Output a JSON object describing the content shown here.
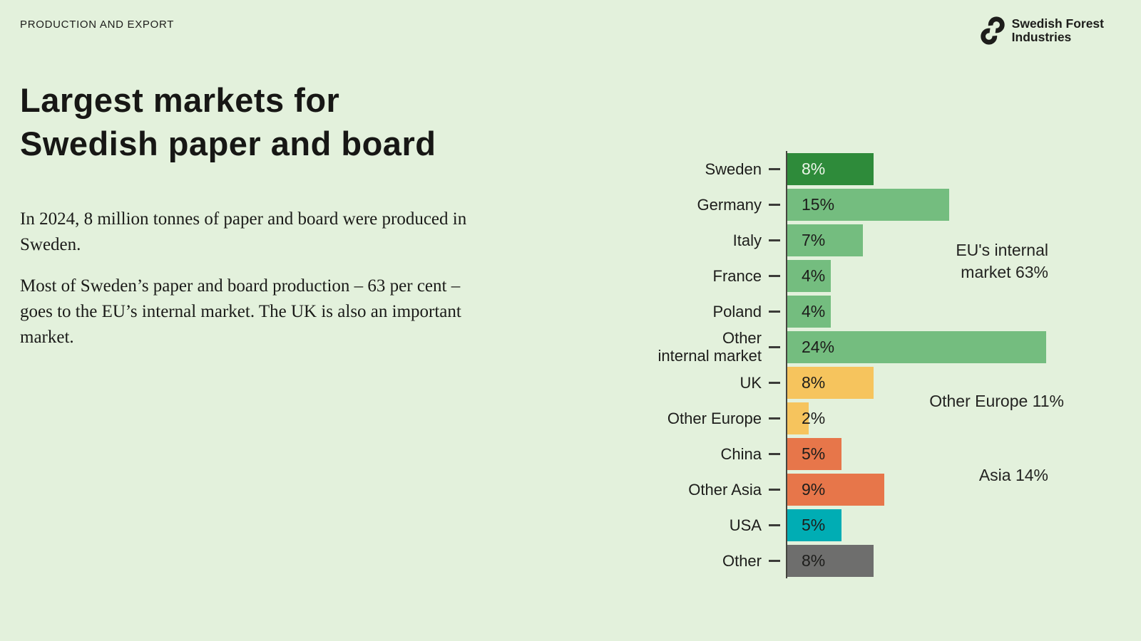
{
  "page": {
    "eyebrow": "PRODUCTION AND EXPORT",
    "title_line1": "Largest markets for",
    "title_line2": "Swedish paper and board",
    "paragraphs": [
      "In 2024, 8 million tonnes of paper and board were produced in Sweden.",
      "Most of Sweden’s paper and board production – 63 per cent – goes to the EU’s internal market. The UK is also an important market."
    ],
    "background_color": "#e3f1dc"
  },
  "logo": {
    "name_line1": "Swedish Forest",
    "name_line2": "Industries",
    "icon": "interlocking-s-rings"
  },
  "chart_data": {
    "type": "bar",
    "orientation": "horizontal",
    "title": "",
    "xlabel": "",
    "ylabel": "",
    "xlim": [
      0,
      24
    ],
    "grid": false,
    "bars": [
      {
        "category": "Sweden",
        "value": 8,
        "label": "8%",
        "color": "#2e8b3a",
        "label_color": "#edf6e9"
      },
      {
        "category": "Germany",
        "value": 15,
        "label": "15%",
        "color": "#74bd7f",
        "label_color": "#1d1d1b"
      },
      {
        "category": "Italy",
        "value": 7,
        "label": "7%",
        "color": "#74bd7f",
        "label_color": "#1d1d1b"
      },
      {
        "category": "France",
        "value": 4,
        "label": "4%",
        "color": "#74bd7f",
        "label_color": "#1d1d1b"
      },
      {
        "category": "Poland",
        "value": 4,
        "label": "4%",
        "color": "#74bd7f",
        "label_color": "#1d1d1b"
      },
      {
        "category": "Other internal market",
        "display": "Other\ninternal market",
        "value": 24,
        "label": "24%",
        "color": "#74bd7f",
        "label_color": "#1d1d1b"
      },
      {
        "category": "UK",
        "value": 8,
        "label": "8%",
        "color": "#f6c45d",
        "label_color": "#1d1d1b"
      },
      {
        "category": "Other Europe",
        "value": 2,
        "label": "2%",
        "color": "#f6c45d",
        "label_color": "#1d1d1b"
      },
      {
        "category": "China",
        "value": 5,
        "label": "5%",
        "color": "#e7764a",
        "label_color": "#1d1d1b"
      },
      {
        "category": "Other Asia",
        "value": 9,
        "label": "9%",
        "color": "#e7764a",
        "label_color": "#1d1d1b"
      },
      {
        "category": "USA",
        "value": 5,
        "label": "5%",
        "color": "#00adb4",
        "label_color": "#1d1d1b"
      },
      {
        "category": "Other",
        "value": 8,
        "label": "8%",
        "color": "#6e6e6d",
        "label_color": "#1d1d1b"
      }
    ],
    "annotations": [
      {
        "id": "eu_internal",
        "text": "EU's internal market 63%"
      },
      {
        "id": "other_europe",
        "text": "Other Europe 11%"
      },
      {
        "id": "asia",
        "text": "Asia 14%"
      }
    ],
    "axis_color": "#45453f"
  }
}
